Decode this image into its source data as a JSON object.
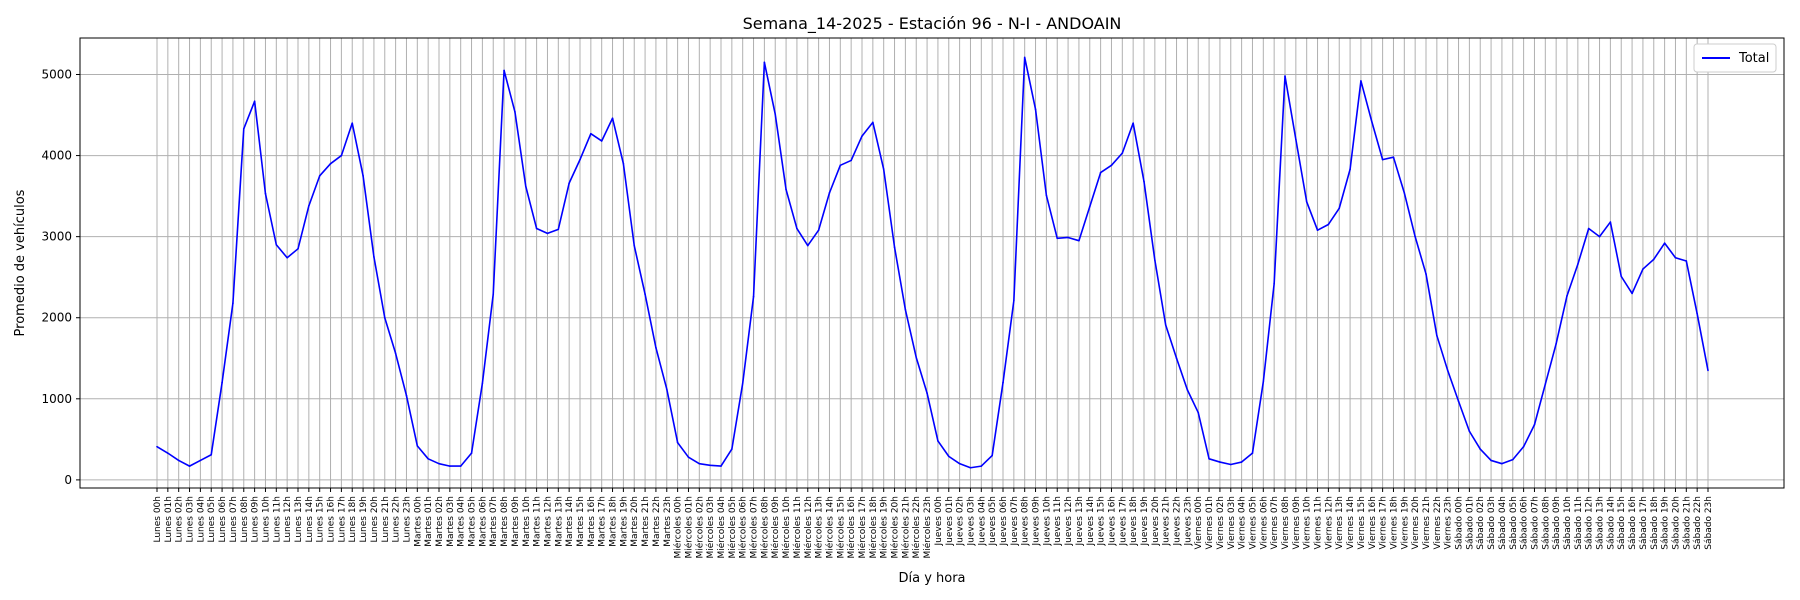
{
  "chart_data": {
    "type": "line",
    "title": "Semana_14-2025 - Estación 96 - N-I  - ANDOAIN",
    "xlabel": "Día y hora",
    "ylabel": "Promedio de vehículos",
    "ylim": [
      -100,
      5450
    ],
    "yticks": [
      0,
      1000,
      2000,
      3000,
      4000,
      5000
    ],
    "grid": true,
    "legend": "top-right",
    "colors": {
      "series": "#0000ff",
      "grid": "#b0b0b0",
      "axis": "#000000"
    },
    "x": [
      "Lunes 00h",
      "Lunes 01h",
      "Lunes 02h",
      "Lunes 03h",
      "Lunes 04h",
      "Lunes 05h",
      "Lunes 06h",
      "Lunes 07h",
      "Lunes 08h",
      "Lunes 09h",
      "Lunes 10h",
      "Lunes 11h",
      "Lunes 12h",
      "Lunes 13h",
      "Lunes 14h",
      "Lunes 15h",
      "Lunes 16h",
      "Lunes 17h",
      "Lunes 18h",
      "Lunes 19h",
      "Lunes 20h",
      "Lunes 21h",
      "Lunes 22h",
      "Lunes 23h",
      "Martes 00h",
      "Martes 01h",
      "Martes 02h",
      "Martes 03h",
      "Martes 04h",
      "Martes 05h",
      "Martes 06h",
      "Martes 07h",
      "Martes 08h",
      "Martes 09h",
      "Martes 10h",
      "Martes 11h",
      "Martes 12h",
      "Martes 13h",
      "Martes 14h",
      "Martes 15h",
      "Martes 16h",
      "Martes 17h",
      "Martes 18h",
      "Martes 19h",
      "Martes 20h",
      "Martes 21h",
      "Martes 22h",
      "Martes 23h",
      "Miércoles 00h",
      "Miércoles 01h",
      "Miércoles 02h",
      "Miércoles 03h",
      "Miércoles 04h",
      "Miércoles 05h",
      "Miércoles 06h",
      "Miércoles 07h",
      "Miércoles 08h",
      "Miércoles 09h",
      "Miércoles 10h",
      "Miércoles 11h",
      "Miércoles 12h",
      "Miércoles 13h",
      "Miércoles 14h",
      "Miércoles 15h",
      "Miércoles 16h",
      "Miércoles 17h",
      "Miércoles 18h",
      "Miércoles 19h",
      "Miércoles 20h",
      "Miércoles 21h",
      "Miércoles 22h",
      "Miércoles 23h",
      "Jueves 00h",
      "Jueves 01h",
      "Jueves 02h",
      "Jueves 03h",
      "Jueves 04h",
      "Jueves 05h",
      "Jueves 06h",
      "Jueves 07h",
      "Jueves 08h",
      "Jueves 09h",
      "Jueves 10h",
      "Jueves 11h",
      "Jueves 12h",
      "Jueves 13h",
      "Jueves 14h",
      "Jueves 15h",
      "Jueves 16h",
      "Jueves 17h",
      "Jueves 18h",
      "Jueves 19h",
      "Jueves 20h",
      "Jueves 21h",
      "Jueves 22h",
      "Jueves 23h",
      "Viernes 00h",
      "Viernes 01h",
      "Viernes 02h",
      "Viernes 03h",
      "Viernes 04h",
      "Viernes 05h",
      "Viernes 06h",
      "Viernes 07h",
      "Viernes 08h",
      "Viernes 09h",
      "Viernes 10h",
      "Viernes 11h",
      "Viernes 12h",
      "Viernes 13h",
      "Viernes 14h",
      "Viernes 15h",
      "Viernes 16h",
      "Viernes 17h",
      "Viernes 18h",
      "Viernes 19h",
      "Viernes 20h",
      "Viernes 21h",
      "Viernes 22h",
      "Viernes 23h",
      "Sábado 00h",
      "Sábado 01h",
      "Sábado 02h",
      "Sábado 03h",
      "Sábado 04h",
      "Sábado 05h",
      "Sábado 06h",
      "Sábado 07h",
      "Sábado 08h",
      "Sábado 09h",
      "Sábado 10h",
      "Sábado 11h",
      "Sábado 12h",
      "Sábado 13h",
      "Sábado 14h",
      "Sábado 15h",
      "Sábado 16h",
      "Sábado 17h",
      "Sábado 18h",
      "Sábado 19h",
      "Sábado 20h",
      "Sábado 21h",
      "Sábado 22h",
      "Sábado 23h"
    ],
    "series": [
      {
        "name": "Total",
        "values": [
          410,
          330,
          240,
          170,
          240,
          310,
          1200,
          2180,
          4330,
          4670,
          3530,
          2900,
          2740,
          2850,
          3380,
          3750,
          3900,
          4000,
          4400,
          3750,
          2750,
          2000,
          1560,
          1040,
          420,
          260,
          200,
          170,
          170,
          330,
          1190,
          2290,
          5050,
          4540,
          3620,
          3100,
          3040,
          3090,
          3660,
          3950,
          4270,
          4180,
          4460,
          3900,
          2890,
          2290,
          1630,
          1120,
          460,
          280,
          200,
          180,
          170,
          380,
          1190,
          2260,
          5150,
          4510,
          3580,
          3100,
          2890,
          3080,
          3540,
          3880,
          3940,
          4240,
          4410,
          3830,
          2870,
          2100,
          1510,
          1070,
          480,
          290,
          200,
          150,
          170,
          300,
          1200,
          2210,
          5210,
          4570,
          3510,
          2980,
          2990,
          2950,
          3370,
          3790,
          3880,
          4030,
          4400,
          3680,
          2710,
          1910,
          1500,
          1110,
          830,
          260,
          220,
          190,
          220,
          330,
          1210,
          2420,
          4980,
          4200,
          3430,
          3080,
          3150,
          3350,
          3830,
          4920,
          4420,
          3950,
          3980,
          3540,
          3000,
          2540,
          1780,
          1350,
          970,
          600,
          380,
          240,
          200,
          250,
          410,
          680,
          1180,
          1680,
          2270,
          2660,
          3100,
          3000,
          3180,
          2510,
          2300,
          2600,
          2720,
          2920,
          2740,
          2700,
          2050,
          1350
        ]
      }
    ]
  }
}
